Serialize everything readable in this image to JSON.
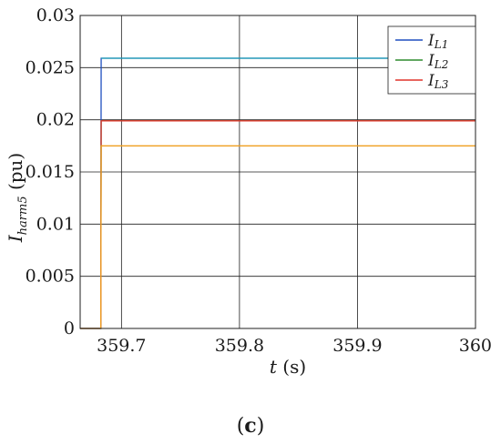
{
  "chart_data": {
    "type": "line",
    "xlabel_main": "t",
    "xlabel_unit": " (s)",
    "ylabel_main": "I",
    "ylabel_sub": "harm5",
    "ylabel_unit": " (pu)",
    "panel_label_open": "(",
    "panel_label_letter": "c",
    "panel_label_close": ")",
    "xlim": [
      359.665,
      360
    ],
    "ylim": [
      0,
      0.03
    ],
    "xticks": [
      359.7,
      359.8,
      359.9,
      360
    ],
    "xtick_labels": [
      "359.7",
      "359.8",
      "359.9",
      "360"
    ],
    "yticks": [
      0,
      0.005,
      0.01,
      0.015,
      0.02,
      0.025,
      0.03
    ],
    "ytick_labels": [
      "0",
      "0.005",
      "0.01",
      "0.015",
      "0.02",
      "0.025",
      "0.03"
    ],
    "grid": true,
    "legend_placement": "top-right",
    "series": [
      {
        "name_main": "I",
        "name_sub": "L1",
        "color": "#1f4fbf",
        "x": [
          359.665,
          359.6825,
          359.6828,
          360
        ],
        "y": [
          0,
          0,
          0.0259,
          0.0259
        ]
      },
      {
        "name_main": "I",
        "name_sub": "L2",
        "color": "#2e8b2e",
        "x": [
          359.665,
          359.6825,
          359.6828,
          360
        ],
        "y": [
          0,
          0,
          0.0199,
          0.0199
        ]
      },
      {
        "name_main": "I",
        "name_sub": "L3",
        "color": "#e0342a",
        "x": [
          359.665,
          359.6825,
          359.6828,
          360
        ],
        "y": [
          0,
          0,
          0.0199,
          0.0199
        ]
      },
      {
        "color": "#f0a020",
        "x": [
          359.665,
          359.6825,
          359.6828,
          360
        ],
        "y": [
          0,
          0,
          0.0175,
          0.0175
        ]
      },
      {
        "color": "#1a9fb5",
        "x": [
          359.6828,
          360
        ],
        "y": [
          0.0259,
          0.0259
        ]
      }
    ]
  }
}
